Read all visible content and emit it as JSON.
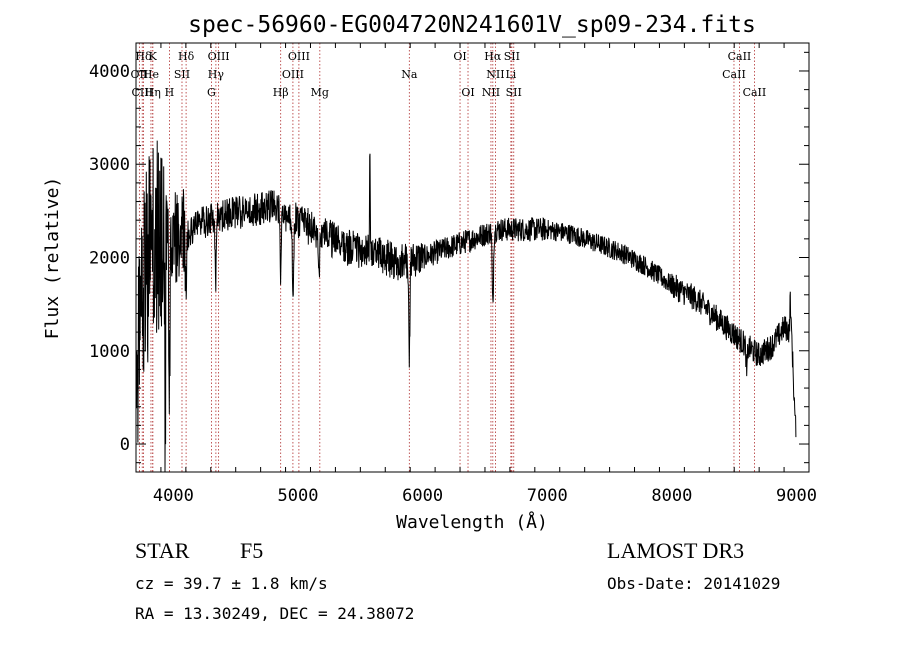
{
  "chart_data": {
    "type": "line",
    "title": "spec-56960-EG004720N241601V_sp09-234.fits",
    "xlabel": "Wavelength (Å)",
    "ylabel": "Flux (relative)",
    "xlim": [
      3700,
      9100
    ],
    "ylim": [
      -300,
      4300
    ],
    "xticks": [
      4000,
      5000,
      6000,
      7000,
      8000,
      9000
    ],
    "xtick_labels": [
      "4000",
      "5000",
      "6000",
      "7000",
      "8000",
      "9000"
    ],
    "yticks": [
      0,
      1000,
      2000,
      3000,
      4000
    ],
    "ytick_labels": [
      "0",
      "1000",
      "2000",
      "3000",
      "4000"
    ],
    "continuum": {
      "x": [
        3700,
        3760,
        3820,
        3900,
        4000,
        4100,
        4200,
        4300,
        4400,
        4600,
        4800,
        4900,
        5000,
        5200,
        5400,
        5600,
        5800,
        6000,
        6200,
        6400,
        6600,
        6800,
        7000,
        7200,
        7400,
        7600,
        7800,
        8000,
        8200,
        8400,
        8600,
        8700,
        8800,
        8900,
        8960,
        8990
      ],
      "y": [
        600,
        1600,
        2200,
        2300,
        2200,
        2250,
        2350,
        2420,
        2450,
        2500,
        2550,
        2450,
        2400,
        2250,
        2100,
        2050,
        1950,
        2000,
        2100,
        2200,
        2300,
        2300,
        2300,
        2250,
        2150,
        2050,
        1900,
        1700,
        1550,
        1300,
        1050,
        950,
        1050,
        1250,
        1200,
        200
      ]
    },
    "absorption_features": [
      {
        "x": 3934,
        "y": 500
      },
      {
        "x": 3968,
        "y": 700
      },
      {
        "x": 4101,
        "y": 1700
      },
      {
        "x": 4340,
        "y": 1800
      },
      {
        "x": 4861,
        "y": 1700
      },
      {
        "x": 4960,
        "y": 1600
      },
      {
        "x": 5170,
        "y": 1900
      },
      {
        "x": 5893,
        "y": 900
      },
      {
        "x": 6563,
        "y": 1450
      },
      {
        "x": 8600,
        "y": 750
      }
    ],
    "emission_spikes": [
      {
        "x": 5577,
        "y": 3100
      },
      {
        "x": 8950,
        "y": 1600
      }
    ],
    "lines": [
      {
        "label": "Hδ",
        "x": 3760,
        "row": 0
      },
      {
        "label": "K",
        "x": 3834,
        "row": 0
      },
      {
        "label": "Hδ",
        "x": 4102,
        "row": 0
      },
      {
        "label": "OIII",
        "x": 4363,
        "row": 0
      },
      {
        "label": "OIII",
        "x": 5007,
        "row": 0
      },
      {
        "label": "OI",
        "x": 6300,
        "row": 0
      },
      {
        "label": "Hα",
        "x": 6563,
        "row": 0
      },
      {
        "label": "SII",
        "x": 6716,
        "row": 0
      },
      {
        "label": "CaII",
        "x": 8542,
        "row": 0
      },
      {
        "label": "OII",
        "x": 3727,
        "row": 1
      },
      {
        "label": "He",
        "x": 3820,
        "row": 1
      },
      {
        "label": "SII",
        "x": 4069,
        "row": 1
      },
      {
        "label": "Hγ",
        "x": 4341,
        "row": 1
      },
      {
        "label": "OIII",
        "x": 4959,
        "row": 1
      },
      {
        "label": "Na",
        "x": 5893,
        "row": 1
      },
      {
        "label": "NII",
        "x": 6584,
        "row": 1
      },
      {
        "label": "Li",
        "x": 6708,
        "row": 1
      },
      {
        "label": "CaII",
        "x": 8498,
        "row": 1
      },
      {
        "label": "CIII",
        "x": 3750,
        "row": 2
      },
      {
        "label": "Hη",
        "x": 3835,
        "row": 2
      },
      {
        "label": "H",
        "x": 3968,
        "row": 2
      },
      {
        "label": "G",
        "x": 4305,
        "row": 2
      },
      {
        "label": "Hβ",
        "x": 4861,
        "row": 2
      },
      {
        "label": "Mg",
        "x": 5175,
        "row": 2
      },
      {
        "label": "OI",
        "x": 6364,
        "row": 2
      },
      {
        "label": "NII",
        "x": 6548,
        "row": 2
      },
      {
        "label": "SII",
        "x": 6731,
        "row": 2
      },
      {
        "label": "CaII",
        "x": 8662,
        "row": 2
      }
    ],
    "line_color": "#b03030",
    "spectrum_color": "#000000"
  },
  "info": {
    "object_type": "STAR",
    "subclass": "F5",
    "survey": "LAMOST DR3",
    "cz": "cz = 39.7 ± 1.8 km/s",
    "obs_date": "Obs-Date: 20141029",
    "radec": "RA =  13.30249, DEC =  24.38072"
  }
}
